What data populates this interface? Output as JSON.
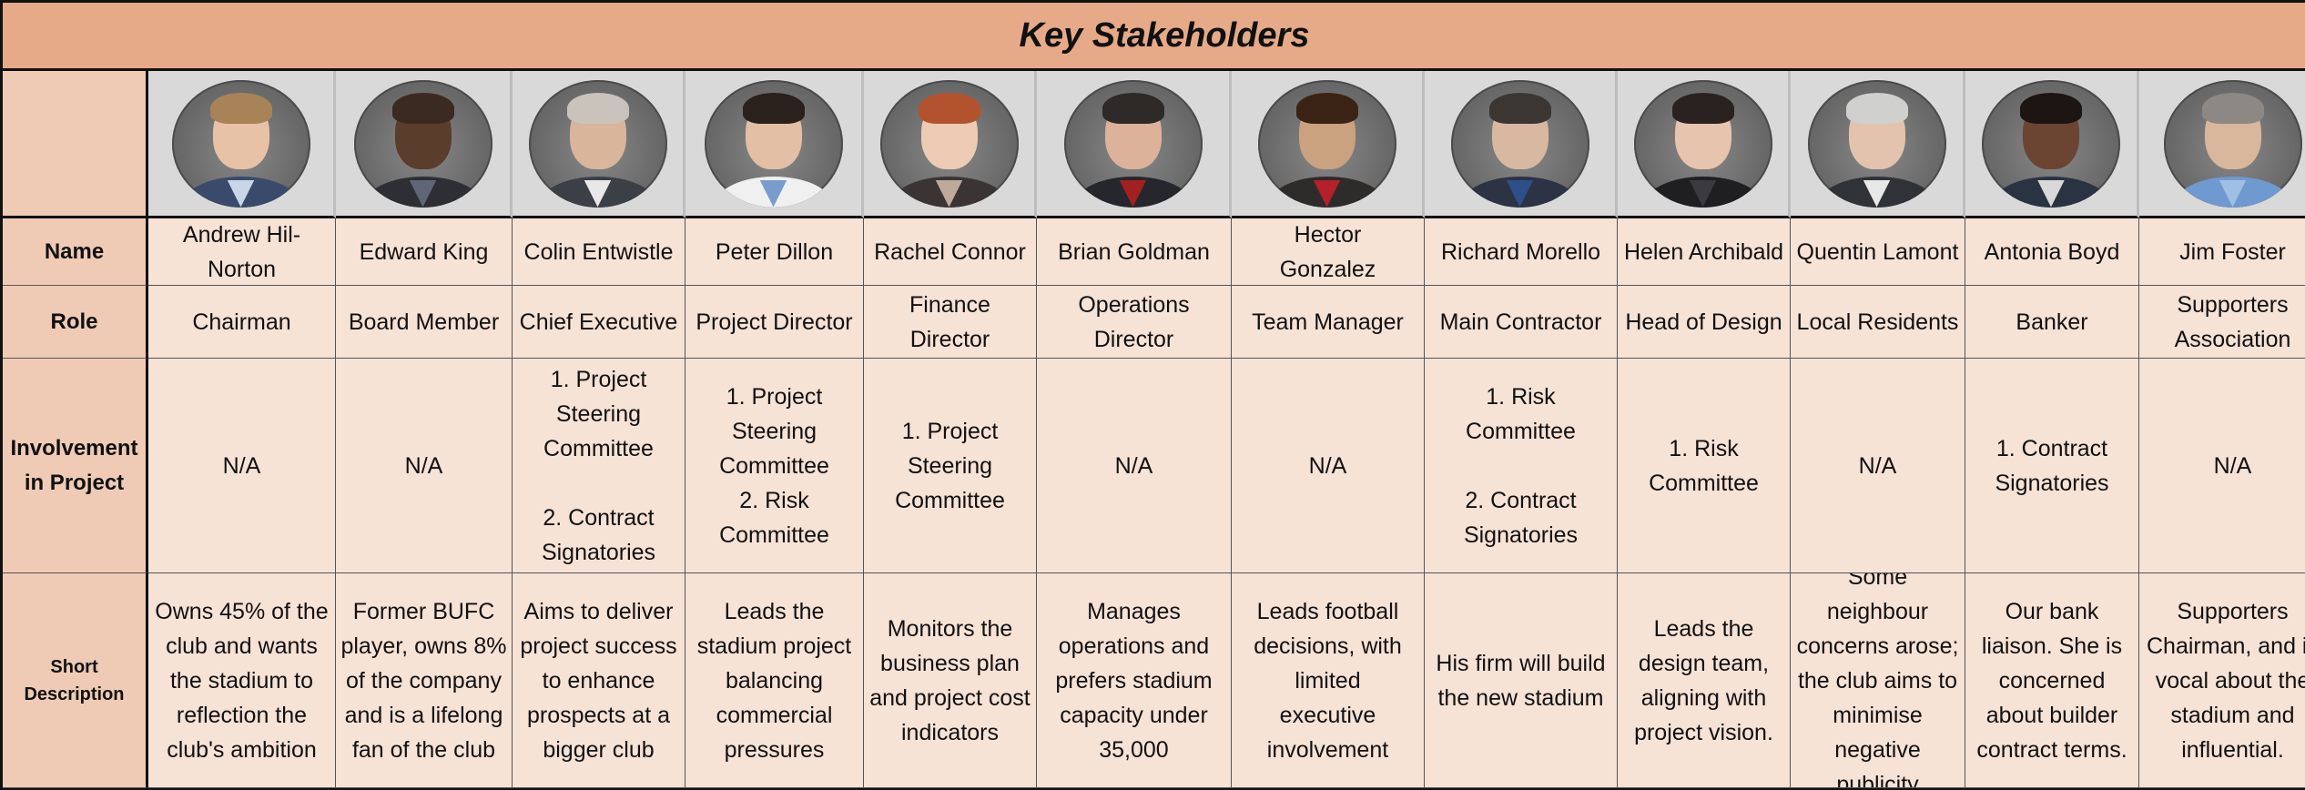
{
  "title": "Key Stakeholders",
  "row_headers": {
    "name": "Name",
    "role": "Role",
    "involvement": "Involvement\nin Project",
    "description": "Short\nDescription"
  },
  "stakeholders": [
    {
      "name": "Andrew Hil-\nNorton",
      "role": "Chairman",
      "involvement": "N/A",
      "description": "Owns 45% of the\nclub and wants\nthe stadium to\nreflection the\nclub's ambition",
      "photo_icon": "portrait-photo",
      "colors": {
        "skin": "#e7c2a6",
        "hair": "#a88358",
        "suit": "#3a4a6b",
        "shirt": "#c9d6ea"
      }
    },
    {
      "name": "Edward King",
      "role": "Board Member",
      "involvement": "N/A",
      "description": "Former BUFC\nplayer, owns 8%\nof the company\nand is a lifelong\nfan of the club",
      "photo_icon": "portrait-photo",
      "colors": {
        "skin": "#5a3d2b",
        "hair": "#3b2a1f",
        "suit": "#2d2f35",
        "shirt": "#5f6675"
      }
    },
    {
      "name": "Colin Entwistle",
      "role": "Chief Executive",
      "involvement": "1. Project\nSteering\nCommittee\n\n2. Contract\nSignatories",
      "description": "Aims to deliver\nproject success\nto enhance\nprospects at a\nbigger club",
      "photo_icon": "portrait-photo",
      "colors": {
        "skin": "#d9b59c",
        "hair": "#c9c3bb",
        "suit": "#3b3f46",
        "shirt": "#e8e8e8"
      }
    },
    {
      "name": "Peter Dillon",
      "role": "Project Director",
      "involvement": "1. Project\nSteering\nCommittee\n2. Risk\nCommittee",
      "description": "Leads the\nstadium project\nbalancing\ncommercial\npressures",
      "photo_icon": "portrait-photo",
      "colors": {
        "skin": "#e2bfa5",
        "hair": "#2a211c",
        "suit": "#f0f0f0",
        "shirt": "#7a9ccc"
      }
    },
    {
      "name": "Rachel Connor",
      "role": "Finance\nDirector",
      "involvement": "1. Project\nSteering\nCommittee",
      "description": "Monitors the\nbusiness plan\nand project cost\nindicators",
      "photo_icon": "portrait-photo",
      "colors": {
        "skin": "#edcbb4",
        "hair": "#b2532d",
        "suit": "#3a3534",
        "shirt": "#bfa99a"
      }
    },
    {
      "name": "Brian Goldman",
      "role": "Operations\nDirector",
      "involvement": "N/A",
      "description": "Manages\noperations and\nprefers stadium\ncapacity under\n35,000",
      "photo_icon": "portrait-photo",
      "colors": {
        "skin": "#dcb29a",
        "hair": "#2d2a27",
        "suit": "#25272c",
        "shirt": "#a22020"
      }
    },
    {
      "name": "Hector\nGonzalez",
      "role": "Team Manager",
      "involvement": "N/A",
      "description": "Leads football\ndecisions, with\nlimited\nexecutive\ninvolvement",
      "photo_icon": "portrait-photo",
      "colors": {
        "skin": "#caa27f",
        "hair": "#3a2314",
        "suit": "#2e2b2b",
        "shirt": "#b4202b"
      }
    },
    {
      "name": "Richard Morello",
      "role": "Main Contractor",
      "involvement": "1. Risk\nCommittee\n\n2. Contract\nSignatories",
      "description": "His firm will build\nthe new stadium",
      "photo_icon": "portrait-photo",
      "colors": {
        "skin": "#d8b8a0",
        "hair": "#3c3632",
        "suit": "#2b3344",
        "shirt": "#2d4f8a"
      }
    },
    {
      "name": "Helen Archibald",
      "role": "Head of Design",
      "involvement": "1. Risk\nCommittee",
      "description": "Leads the\ndesign team,\naligning with\nproject vision.",
      "photo_icon": "portrait-photo",
      "colors": {
        "skin": "#e6c4ad",
        "hair": "#2a2220",
        "suit": "#1f1f22",
        "shirt": "#3b3b3f"
      }
    },
    {
      "name": "Quentin Lamont",
      "role": "Local Residents",
      "involvement": "N/A",
      "description": "Some neighbour\nconcerns arose;\nthe club aims to\nminimise\nnegative\npublicity",
      "photo_icon": "portrait-photo",
      "colors": {
        "skin": "#e3c3ad",
        "hair": "#d0d0cf",
        "suit": "#2f3236",
        "shirt": "#e8e8e8"
      }
    },
    {
      "name": "Antonia Boyd",
      "role": "Banker",
      "involvement": "1. Contract\nSignatories",
      "description": "Our bank\nliaison. She is\nconcerned\nabout builder\ncontract terms.",
      "photo_icon": "portrait-photo",
      "colors": {
        "skin": "#6b4432",
        "hair": "#1c1512",
        "suit": "#2a3342",
        "shirt": "#d9d9d9"
      }
    },
    {
      "name": "Jim Foster",
      "role": "Supporters\nAssociation",
      "involvement": "N/A",
      "description": "Supporters\nChairman, and is\nvocal about the\nstadium and\ninfluential.",
      "photo_icon": "portrait-photo",
      "colors": {
        "skin": "#d8b79d",
        "hair": "#8c8884",
        "suit": "#6f9ad0",
        "shirt": "#9fbfe4"
      }
    }
  ]
}
